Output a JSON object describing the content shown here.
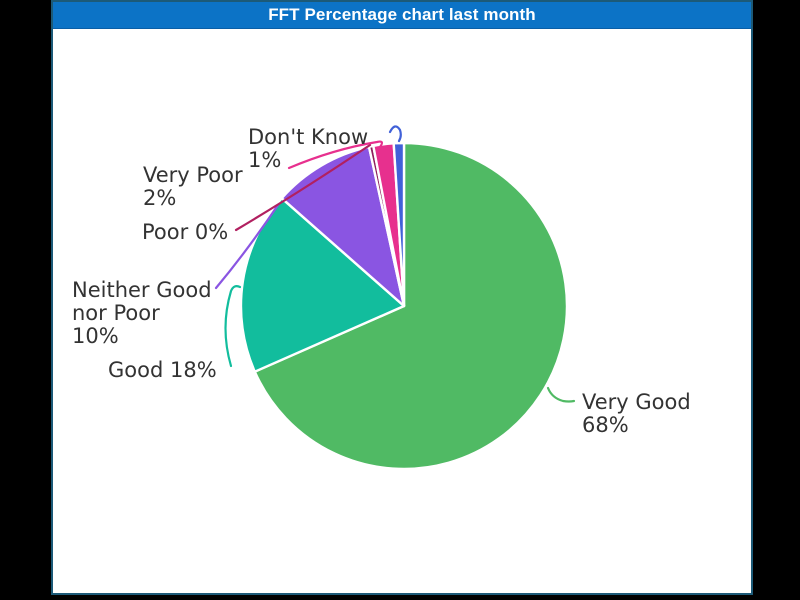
{
  "window": {
    "background_color": "#000000"
  },
  "panel": {
    "border_color": "#1c5a78",
    "background_color": "#ffffff"
  },
  "header": {
    "title": "FFT Percentage chart last month",
    "background_color": "#0c73c6",
    "text_color": "#ffffff"
  },
  "chart_data": {
    "type": "pie",
    "title": "FFT Percentage chart last month",
    "categories": [
      "Very Good",
      "Good",
      "Neither Good nor Poor",
      "Poor",
      "Very Poor",
      "Don't Know"
    ],
    "values": [
      68,
      18,
      10,
      0,
      2,
      1
    ],
    "unit": "%",
    "colors": [
      "#50ba64",
      "#12bd9d",
      "#8a55e2",
      "#8e1f5c",
      "#e7308e",
      "#4161d8"
    ],
    "start_angle": "top",
    "direction": "clockwise",
    "legend_position": "callout-labels",
    "slice_border_color": "#ffffff"
  },
  "pie": {
    "labels": [
      {
        "name": "very-good",
        "lines": [
          "Very Good",
          "68%"
        ]
      },
      {
        "name": "good",
        "lines": [
          "Good 18%"
        ]
      },
      {
        "name": "neither",
        "lines": [
          "Neither Good",
          "nor Poor",
          "10%"
        ]
      },
      {
        "name": "poor",
        "lines": [
          "Poor 0%"
        ]
      },
      {
        "name": "very-poor",
        "lines": [
          "Very Poor",
          "2%"
        ]
      },
      {
        "name": "dont-know",
        "lines": [
          "Don't Know",
          "1%"
        ]
      }
    ],
    "leader_colors": [
      "#50ba64",
      "#12bd9d",
      "#8a55e2",
      "#b12060",
      "#e7308e",
      "#4161d8"
    ]
  }
}
